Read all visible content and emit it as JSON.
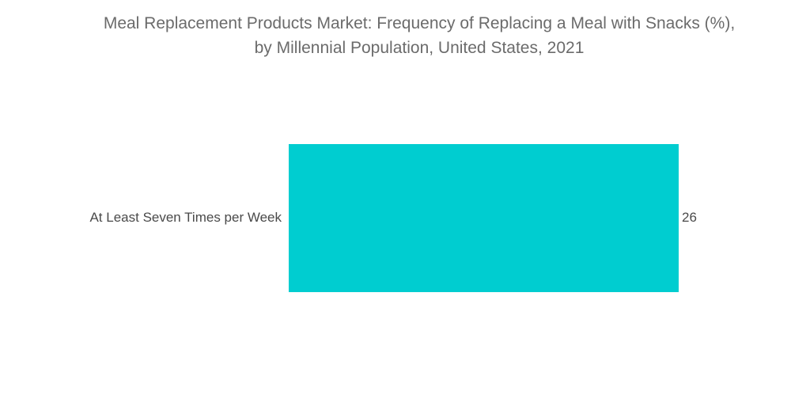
{
  "chart_data": {
    "type": "bar",
    "orientation": "horizontal",
    "title_lines": [
      "Meal Replacement Products Market: Frequency of Replacing a Meal with Snacks (%),",
      "by Millennial Population, United States, 2021"
    ],
    "categories": [
      "At Least Seven Times per Week"
    ],
    "values": [
      26
    ],
    "xlim": [
      0,
      26
    ],
    "grid": false,
    "legend": "none",
    "bar_color": "#00cdd0",
    "show_data_labels": true
  }
}
